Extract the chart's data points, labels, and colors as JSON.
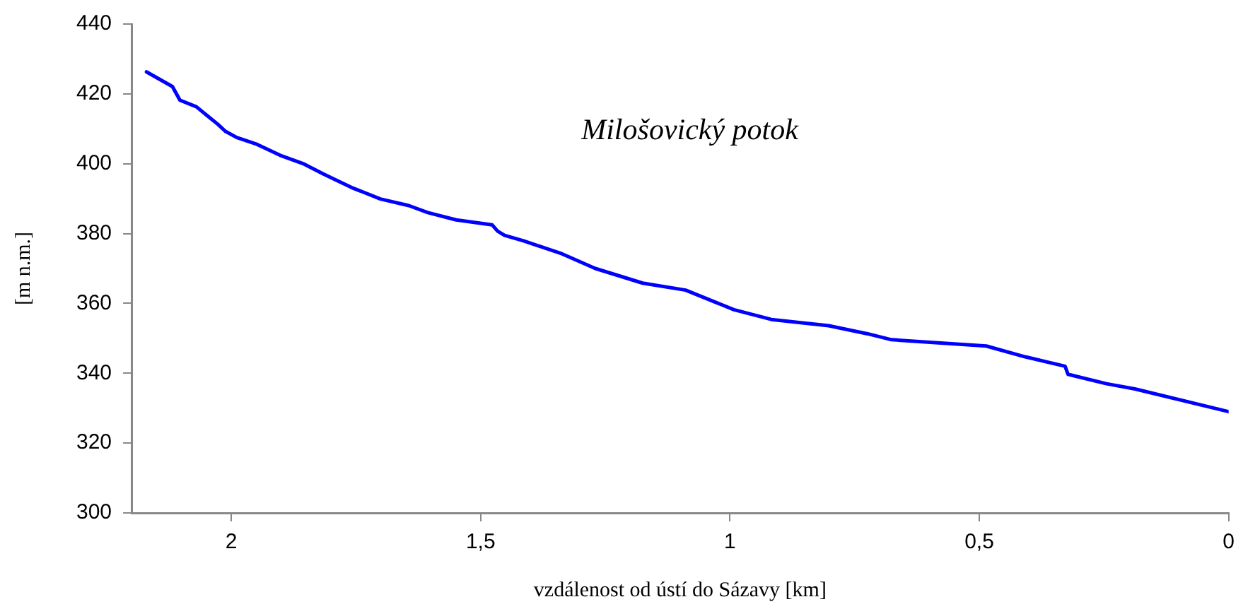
{
  "chart_data": {
    "type": "line",
    "xlabel": "vzdálenost od ústí do Sázavy [km]",
    "ylabel": "[m n.m.]",
    "annotations": [
      "Milošovický potok"
    ],
    "xlim": [
      2.2,
      0
    ],
    "xticks": [
      2,
      {
        "value": 1.5,
        "label": "1,5"
      },
      1,
      {
        "value": 0.5,
        "label": "0,5"
      },
      0
    ],
    "ylim": [
      300,
      440
    ],
    "yticks": [
      300,
      320,
      340,
      360,
      380,
      400,
      420,
      440
    ],
    "grid": false,
    "legend": false,
    "marker": "none",
    "line_style": "solid",
    "series": [
      {
        "color": "#0000ff",
        "x": [
          2.17,
          2.118,
          2.103,
          2.07,
          2.046,
          2.027,
          2.012,
          1.989,
          1.951,
          1.902,
          1.854,
          1.816,
          1.759,
          1.701,
          1.644,
          1.606,
          1.549,
          1.477,
          1.466,
          1.452,
          1.414,
          1.337,
          1.27,
          1.175,
          1.089,
          0.992,
          0.917,
          0.802,
          0.724,
          0.676,
          0.486,
          0.408,
          0.328,
          0.322,
          0.245,
          0.188,
          0
        ],
        "values": [
          426.3,
          422.1,
          418.2,
          416.3,
          413.5,
          411.3,
          409.3,
          407.5,
          405.7,
          402.4,
          399.9,
          397.1,
          393.2,
          389.9,
          388,
          386,
          383.9,
          382.5,
          380.7,
          379.5,
          377.9,
          374.2,
          370,
          365.8,
          363.8,
          358.2,
          355.4,
          353.6,
          351.3,
          349.6,
          347.8,
          344.7,
          342,
          339.7,
          337,
          335.5,
          329
        ]
      }
    ]
  }
}
